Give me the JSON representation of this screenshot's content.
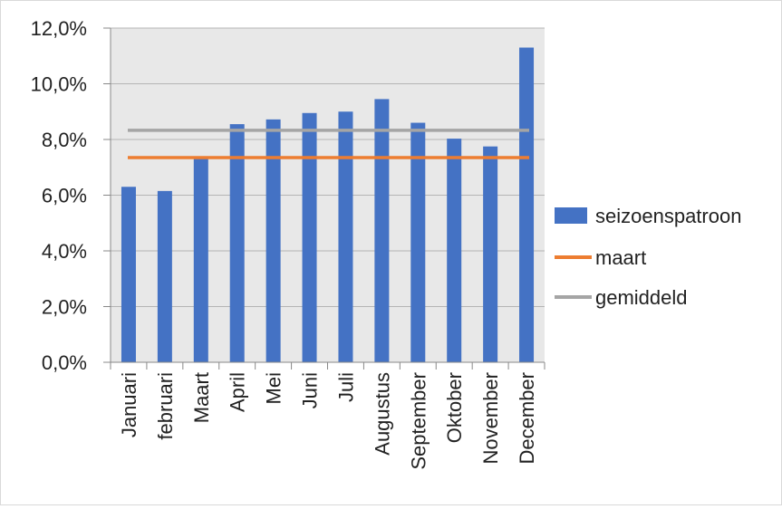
{
  "chart_data": {
    "type": "bar",
    "categories": [
      "Januari",
      "februari",
      "Maart",
      "April",
      "Mei",
      "Juni",
      "Juli",
      "Augustus",
      "September",
      "Oktober",
      "November",
      "December"
    ],
    "series": [
      {
        "name": "seizoenspatroon",
        "kind": "bar",
        "color": "#4472c4",
        "values": [
          6.3,
          6.15,
          7.3,
          8.55,
          8.72,
          8.95,
          9.0,
          9.45,
          8.6,
          8.03,
          7.75,
          11.3
        ]
      },
      {
        "name": "maart",
        "kind": "line",
        "color": "#ed7d31",
        "value": 7.35
      },
      {
        "name": "gemiddeld",
        "kind": "line",
        "color": "#a5a5a5",
        "value": 8.33
      }
    ],
    "ylim": [
      0,
      12
    ],
    "yticks": [
      "0,0%",
      "2,0%",
      "4,0%",
      "6,0%",
      "8,0%",
      "10,0%",
      "12,0%"
    ],
    "ytick_values": [
      0,
      2,
      4,
      6,
      8,
      10,
      12
    ],
    "grid": true,
    "plot_background": "#e8e8e8",
    "legend_position": "right"
  }
}
